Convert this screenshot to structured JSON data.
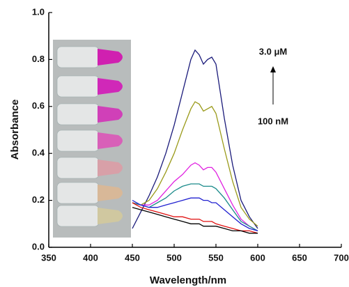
{
  "chart_data": {
    "type": "line",
    "xlabel": "Wavelength/nm",
    "ylabel": "Absorbance",
    "x": [
      450,
      460,
      470,
      480,
      490,
      500,
      510,
      520,
      525,
      530,
      535,
      540,
      545,
      550,
      560,
      570,
      580,
      590,
      600
    ],
    "series": [
      {
        "color": "#1a1a7a",
        "values": [
          0.08,
          0.15,
          0.22,
          0.3,
          0.4,
          0.52,
          0.66,
          0.8,
          0.84,
          0.82,
          0.78,
          0.8,
          0.81,
          0.78,
          0.55,
          0.35,
          0.2,
          0.13,
          0.08
        ]
      },
      {
        "color": "#9a9a1a",
        "values": [
          0.19,
          0.18,
          0.2,
          0.25,
          0.32,
          0.4,
          0.5,
          0.59,
          0.62,
          0.61,
          0.58,
          0.59,
          0.6,
          0.57,
          0.42,
          0.28,
          0.17,
          0.12,
          0.09
        ]
      },
      {
        "color": "#e020e0",
        "values": [
          0.19,
          0.18,
          0.18,
          0.2,
          0.24,
          0.28,
          0.31,
          0.35,
          0.36,
          0.35,
          0.33,
          0.34,
          0.34,
          0.32,
          0.25,
          0.18,
          0.12,
          0.09,
          0.07
        ]
      },
      {
        "color": "#1a8a8a",
        "values": [
          0.19,
          0.18,
          0.17,
          0.19,
          0.21,
          0.24,
          0.26,
          0.27,
          0.27,
          0.27,
          0.26,
          0.26,
          0.26,
          0.25,
          0.21,
          0.16,
          0.11,
          0.09,
          0.07
        ]
      },
      {
        "color": "#2020d0",
        "values": [
          0.2,
          0.18,
          0.17,
          0.17,
          0.18,
          0.19,
          0.2,
          0.21,
          0.21,
          0.21,
          0.2,
          0.2,
          0.19,
          0.19,
          0.16,
          0.13,
          0.1,
          0.08,
          0.07
        ]
      },
      {
        "color": "#e01010",
        "values": [
          0.19,
          0.17,
          0.16,
          0.15,
          0.14,
          0.13,
          0.13,
          0.12,
          0.12,
          0.12,
          0.11,
          0.11,
          0.11,
          0.1,
          0.09,
          0.08,
          0.07,
          0.07,
          0.06
        ]
      },
      {
        "color": "#000000",
        "values": [
          0.17,
          0.16,
          0.15,
          0.14,
          0.13,
          0.12,
          0.11,
          0.1,
          0.1,
          0.1,
          0.09,
          0.09,
          0.09,
          0.09,
          0.08,
          0.07,
          0.07,
          0.06,
          0.06
        ]
      }
    ],
    "xlim": [
      350,
      700
    ],
    "ylim": [
      0,
      1.0
    ],
    "xticks": [
      350,
      400,
      450,
      500,
      550,
      600,
      650,
      700
    ],
    "yticks": [
      {
        "value": 0,
        "label": "0.0"
      },
      0.2,
      0.4,
      0.6,
      0.8,
      {
        "value": 1.0,
        "label": "1.0"
      }
    ],
    "annotations": [
      "3.0 μM",
      "100 nM"
    ]
  }
}
